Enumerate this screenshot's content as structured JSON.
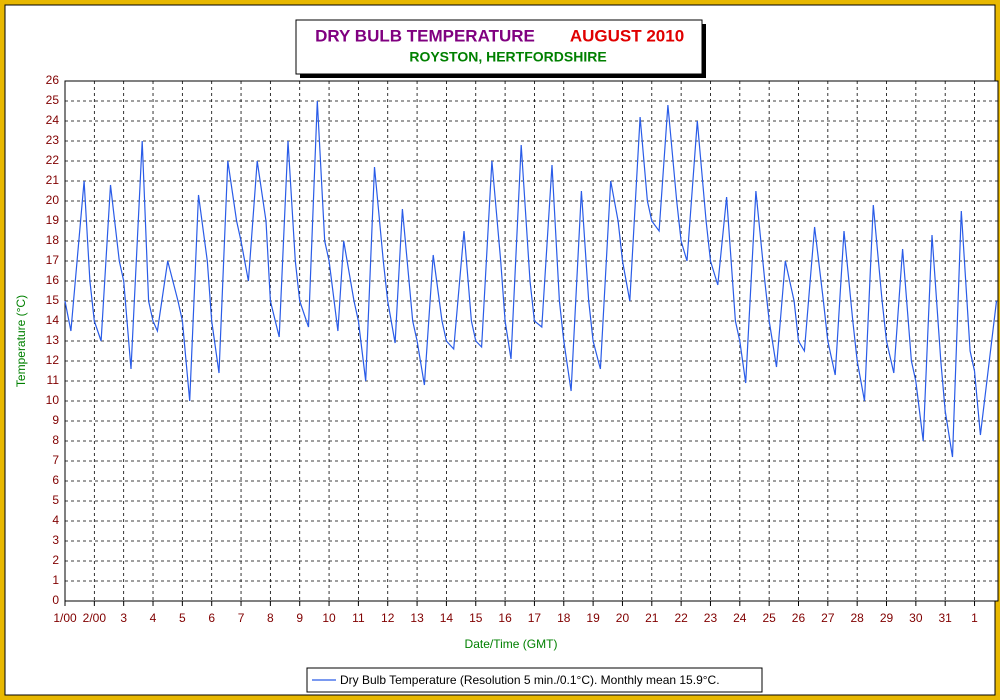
{
  "chart_data": {
    "type": "line",
    "title": "DRY BULB TEMPERATURE",
    "title_date": "AUGUST 2010",
    "subtitle": "ROYSTON, HERTFORDSHIRE",
    "y_label": "Temperature (°C)",
    "x_label": "Date/Time (GMT)",
    "grid": true,
    "xlim": [
      0,
      31.8
    ],
    "xticks": [
      {
        "value": 0,
        "label": "1/00"
      },
      {
        "value": 1,
        "label": "2/00"
      },
      {
        "value": 2,
        "label": "3"
      },
      {
        "value": 3,
        "label": "4"
      },
      {
        "value": 4,
        "label": "5"
      },
      {
        "value": 5,
        "label": "6"
      },
      {
        "value": 6,
        "label": "7"
      },
      {
        "value": 7,
        "label": "8"
      },
      {
        "value": 8,
        "label": "9"
      },
      {
        "value": 9,
        "label": "10"
      },
      {
        "value": 10,
        "label": "11"
      },
      {
        "value": 11,
        "label": "12"
      },
      {
        "value": 12,
        "label": "13"
      },
      {
        "value": 13,
        "label": "14"
      },
      {
        "value": 14,
        "label": "15"
      },
      {
        "value": 15,
        "label": "16"
      },
      {
        "value": 16,
        "label": "17"
      },
      {
        "value": 17,
        "label": "18"
      },
      {
        "value": 18,
        "label": "19"
      },
      {
        "value": 19,
        "label": "20"
      },
      {
        "value": 20,
        "label": "21"
      },
      {
        "value": 21,
        "label": "22"
      },
      {
        "value": 22,
        "label": "23"
      },
      {
        "value": 23,
        "label": "24"
      },
      {
        "value": 24,
        "label": "25"
      },
      {
        "value": 25,
        "label": "26"
      },
      {
        "value": 26,
        "label": "27"
      },
      {
        "value": 27,
        "label": "28"
      },
      {
        "value": 28,
        "label": "29"
      },
      {
        "value": 29,
        "label": "30"
      },
      {
        "value": 30,
        "label": "31"
      },
      {
        "value": 31,
        "label": "1"
      }
    ],
    "ylim": [
      0,
      26
    ],
    "yticks": [
      0,
      1,
      2,
      3,
      4,
      5,
      6,
      7,
      8,
      9,
      10,
      11,
      12,
      13,
      14,
      15,
      16,
      17,
      18,
      19,
      20,
      21,
      22,
      23,
      24,
      25,
      26
    ],
    "x": [
      0,
      0.2,
      0.65,
      0.85,
      1,
      1.23,
      1.55,
      1.85,
      2,
      2.25,
      2.63,
      2.85,
      3,
      3.15,
      3.5,
      3.85,
      4,
      4.25,
      4.55,
      4.85,
      5,
      5.25,
      5.55,
      5.85,
      6,
      6.25,
      6.55,
      6.85,
      7,
      7.3,
      7.6,
      7.85,
      8,
      8.3,
      8.6,
      8.85,
      9,
      9.3,
      9.5,
      9.85,
      10,
      10.25,
      10.55,
      10.85,
      11,
      11.25,
      11.5,
      11.85,
      12,
      12.25,
      12.55,
      12.85,
      13,
      13.25,
      13.6,
      13.85,
      14,
      14.2,
      14.55,
      14.85,
      15,
      15.2,
      15.55,
      15.85,
      16,
      16.25,
      16.6,
      16.85,
      17,
      17.25,
      17.6,
      17.85,
      18,
      18.25,
      18.6,
      18.85,
      19,
      19.25,
      19.6,
      19.85,
      20,
      20.25,
      20.55,
      20.85,
      21,
      21.2,
      21.55,
      21.85,
      22,
      22.25,
      22.55,
      22.85,
      23,
      23.2,
      23.55,
      23.85,
      24,
      24.25,
      24.55,
      24.85,
      25,
      25.2,
      25.55,
      25.85,
      26,
      26.25,
      26.55,
      26.85,
      27,
      27.25,
      27.55,
      27.85,
      28,
      28.25,
      28.55,
      28.85,
      29,
      29.25,
      29.55,
      29.85,
      30,
      30.25,
      30.55,
      30.85,
      31,
      31.2,
      31.75
    ],
    "series": [
      {
        "name": "Dry Bulb Temperature (Resolution 5 min./0.1°C). Monthly mean 15.9°C.",
        "color": "#2a5ce8",
        "values": [
          15,
          13.5,
          21,
          16,
          14,
          13,
          20.8,
          17,
          16,
          11.6,
          23,
          15,
          14,
          13.5,
          17,
          15,
          14,
          10,
          20.3,
          17,
          14,
          11.4,
          22,
          19,
          18,
          16,
          22,
          19,
          15,
          13.2,
          23,
          17,
          15,
          13.7,
          25,
          18,
          17,
          13.5,
          18,
          15,
          14,
          11,
          21.7,
          17,
          15,
          12.9,
          19.6,
          14,
          13,
          10.8,
          17.3,
          14,
          13,
          12.6,
          18.5,
          14,
          13,
          12.7,
          22,
          17,
          14,
          12.1,
          22.8,
          16,
          14,
          13.7,
          21.8,
          15,
          13,
          10.5,
          20.5,
          15,
          13,
          11.6,
          21,
          19,
          17,
          15,
          24.2,
          20,
          19,
          18.5,
          24.8,
          20,
          18,
          17,
          24,
          19,
          17,
          15.8,
          20.2,
          14,
          13,
          10.9,
          20.5,
          16,
          14,
          11.7,
          17,
          15,
          13,
          12.5,
          18.7,
          15,
          13,
          11.3,
          18.5,
          14,
          12,
          10,
          19.8,
          15,
          13,
          11.4,
          17.6,
          12,
          11,
          8,
          18.3,
          12,
          9.5,
          7.2,
          19.5,
          12.5,
          11.5,
          8.3,
          15
        ]
      }
    ]
  }
}
